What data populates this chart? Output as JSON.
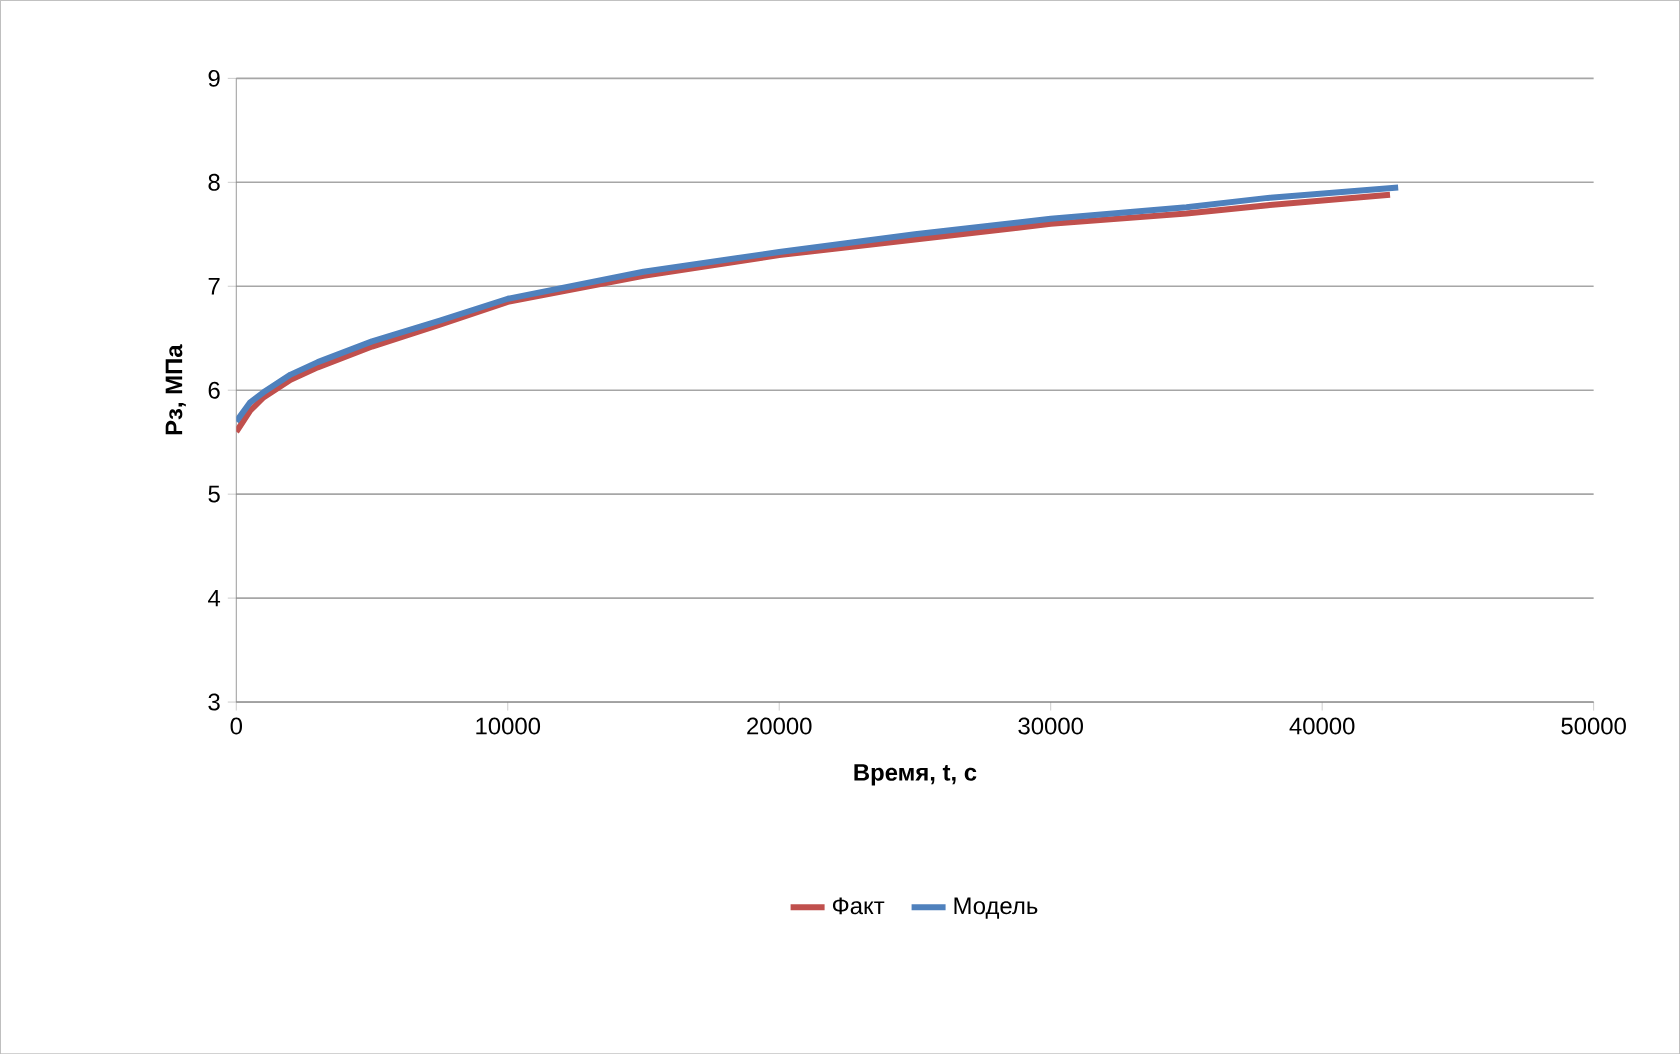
{
  "chart_data": {
    "type": "line",
    "xlabel": "Время, t, с",
    "ylabel": "Рз, МПа",
    "xlim": [
      0,
      50000
    ],
    "xticks": [
      0,
      10000,
      20000,
      30000,
      40000,
      50000
    ],
    "ylim": [
      3,
      9
    ],
    "yticks": [
      3,
      4,
      5,
      6,
      7,
      8,
      9
    ],
    "grid": "y",
    "legend": "bottom",
    "marker": "none",
    "line_style": "solid",
    "series": [
      {
        "name": "Факт",
        "color": "#c0504d",
        "x": [
          0,
          500,
          1000,
          2000,
          3000,
          5000,
          7500,
          10000,
          15000,
          20000,
          25000,
          30000,
          35000,
          38000,
          42500
        ],
        "values": [
          5.6,
          5.8,
          5.93,
          6.1,
          6.22,
          6.42,
          6.63,
          6.85,
          7.1,
          7.3,
          7.45,
          7.6,
          7.7,
          7.78,
          7.88
        ]
      },
      {
        "name": "Модель",
        "color": "#4f81bd",
        "x": [
          0,
          500,
          1000,
          2000,
          3000,
          5000,
          7500,
          10000,
          15000,
          20000,
          25000,
          30000,
          35000,
          38000,
          42800
        ],
        "values": [
          5.7,
          5.88,
          5.98,
          6.15,
          6.27,
          6.47,
          6.67,
          6.88,
          7.14,
          7.33,
          7.5,
          7.65,
          7.76,
          7.85,
          7.95
        ]
      }
    ]
  }
}
